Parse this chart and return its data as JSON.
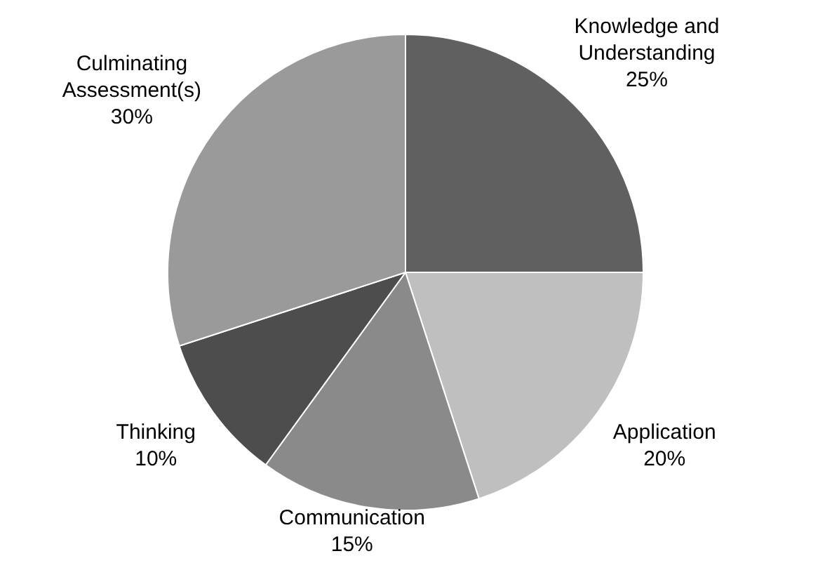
{
  "chart_data": {
    "type": "pie",
    "categories": [
      "Knowledge and Understanding",
      "Application",
      "Communication",
      "Thinking",
      "Culminating Assessment(s)"
    ],
    "values": [
      25,
      20,
      15,
      10,
      30
    ],
    "value_labels": [
      "25%",
      "20%",
      "15%",
      "10%",
      "30%"
    ],
    "colors": [
      "#606060",
      "#bfbfbf",
      "#8a8a8a",
      "#4d4d4d",
      "#9a9a9a"
    ],
    "legend": false
  }
}
